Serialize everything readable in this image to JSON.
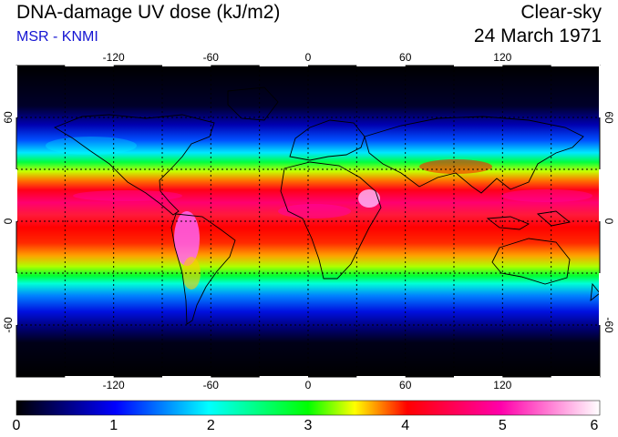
{
  "header": {
    "title": "DNA-damage UV dose (kJ/m2)",
    "source": "MSR - KNMI",
    "condition": "Clear-sky",
    "date": "24 March 1971"
  },
  "map": {
    "projection": "equirectangular",
    "lon_range": [
      -180,
      180
    ],
    "lat_range": [
      -90,
      90
    ],
    "longitude_ticks": [
      -120,
      -60,
      0,
      60,
      120
    ],
    "latitude_ticks": [
      60,
      0,
      -60
    ],
    "gridlines": "dotted every 30 degrees",
    "coastlines": "black outlines"
  },
  "colorbar": {
    "min": 0,
    "max": 6,
    "labels": [
      "0",
      "1",
      "2",
      "3",
      "4",
      "5",
      "6"
    ],
    "colors": [
      "#000000",
      "#0000ff",
      "#00ffff",
      "#00ff00",
      "#ffff00",
      "#ff0000",
      "#ff00aa",
      "#ffffff"
    ]
  }
}
